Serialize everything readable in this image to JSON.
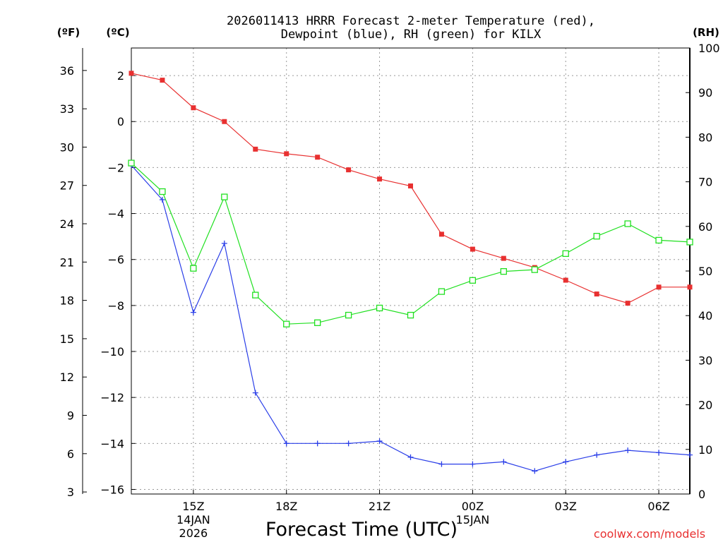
{
  "chart_data": {
    "type": "line",
    "title_line1": "2026011413 HRRR Forecast 2-meter Temperature (red),",
    "title_line2": "Dewpoint (blue), RH (green) for KILX",
    "xlabel": "Forecast Time (UTC)",
    "credit": "coolwx.com/models",
    "left_unit_f": "(ºF)",
    "left_unit_c": "(ºC)",
    "right_unit": "(RH)",
    "x_range_hours": [
      13,
      31
    ],
    "x_ticks": [
      {
        "hour": 15,
        "label": "15Z",
        "sub1": "14JAN",
        "sub2": "2026"
      },
      {
        "hour": 18,
        "label": "18Z",
        "sub1": "",
        "sub2": ""
      },
      {
        "hour": 21,
        "label": "21Z",
        "sub1": "",
        "sub2": ""
      },
      {
        "hour": 24,
        "label": "00Z",
        "sub1": "15JAN",
        "sub2": ""
      },
      {
        "hour": 27,
        "label": "03Z",
        "sub1": "",
        "sub2": ""
      },
      {
        "hour": 30,
        "label": "06Z",
        "sub1": "",
        "sub2": ""
      }
    ],
    "y_celsius_range": [
      -16.2,
      3.2
    ],
    "y_celsius_ticks": [
      2,
      0,
      -2,
      -4,
      -6,
      -8,
      -10,
      -12,
      -14,
      -16
    ],
    "y_fahrenheit_ticks": [
      36,
      33,
      30,
      27,
      24,
      21,
      18,
      15,
      12,
      9,
      6,
      3
    ],
    "y_rh_range": [
      0,
      100
    ],
    "y_rh_ticks": [
      100,
      90,
      80,
      70,
      60,
      50,
      40,
      30,
      20,
      10,
      0
    ],
    "x_hours": [
      13,
      14,
      15,
      16,
      17,
      18,
      19,
      20,
      21,
      22,
      23,
      24,
      25,
      26,
      27,
      28,
      29,
      30,
      31
    ],
    "series": [
      {
        "name": "Temperature",
        "unit": "C",
        "color": "#e83030",
        "marker": "filled-square",
        "values": [
          2.1,
          1.8,
          0.6,
          0.0,
          -1.2,
          -1.4,
          -1.55,
          -2.1,
          -2.5,
          -2.8,
          -4.9,
          -5.55,
          -5.95,
          -6.35,
          -6.9,
          -7.5,
          -7.9,
          -7.2,
          -7.2
        ]
      },
      {
        "name": "Dewpoint",
        "unit": "C",
        "color": "#2a3ee8",
        "marker": "plus",
        "values": [
          -1.9,
          -3.4,
          -8.3,
          -5.3,
          -11.8,
          -14.0,
          -14.0,
          -14.0,
          -13.9,
          -14.6,
          -14.9,
          -14.9,
          -14.8,
          -15.2,
          -14.8,
          -14.5,
          -14.3,
          -14.4,
          -14.5
        ]
      },
      {
        "name": "RH",
        "unit": "%",
        "color": "#20e020",
        "marker": "open-square",
        "values": [
          74.2,
          67.8,
          50.6,
          66.6,
          44.6,
          38.1,
          38.4,
          40.1,
          41.7,
          40.1,
          45.4,
          47.9,
          49.9,
          50.3,
          53.9,
          57.8,
          60.6,
          56.9,
          56.5
        ]
      }
    ]
  }
}
